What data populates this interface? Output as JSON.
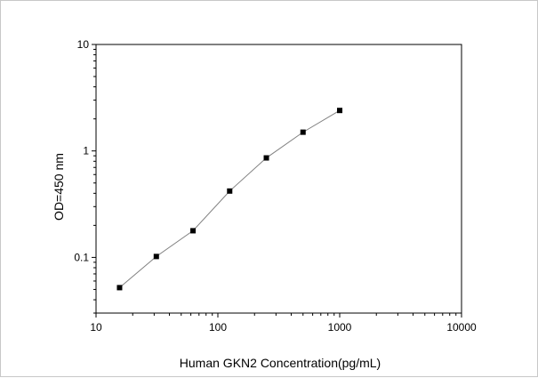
{
  "chart_data": {
    "type": "scatter",
    "xlabel": "Human GKN2 Concentration(pg/mL)",
    "ylabel": "OD=450 nm",
    "xscale": "log",
    "yscale": "log",
    "xlim": [
      10,
      10000
    ],
    "ylim": [
      0.03,
      10
    ],
    "x_ticks": [
      "10",
      "100",
      "1000",
      "10000"
    ],
    "y_ticks": [
      "0.1",
      "1",
      "10"
    ],
    "grid": false,
    "series": [
      {
        "x": [
          15.6,
          31.25,
          62.5,
          125,
          250,
          500,
          1000
        ],
        "y": [
          0.052,
          0.102,
          0.178,
          0.42,
          0.86,
          1.5,
          2.4
        ],
        "line": true,
        "marker": "square"
      }
    ]
  }
}
